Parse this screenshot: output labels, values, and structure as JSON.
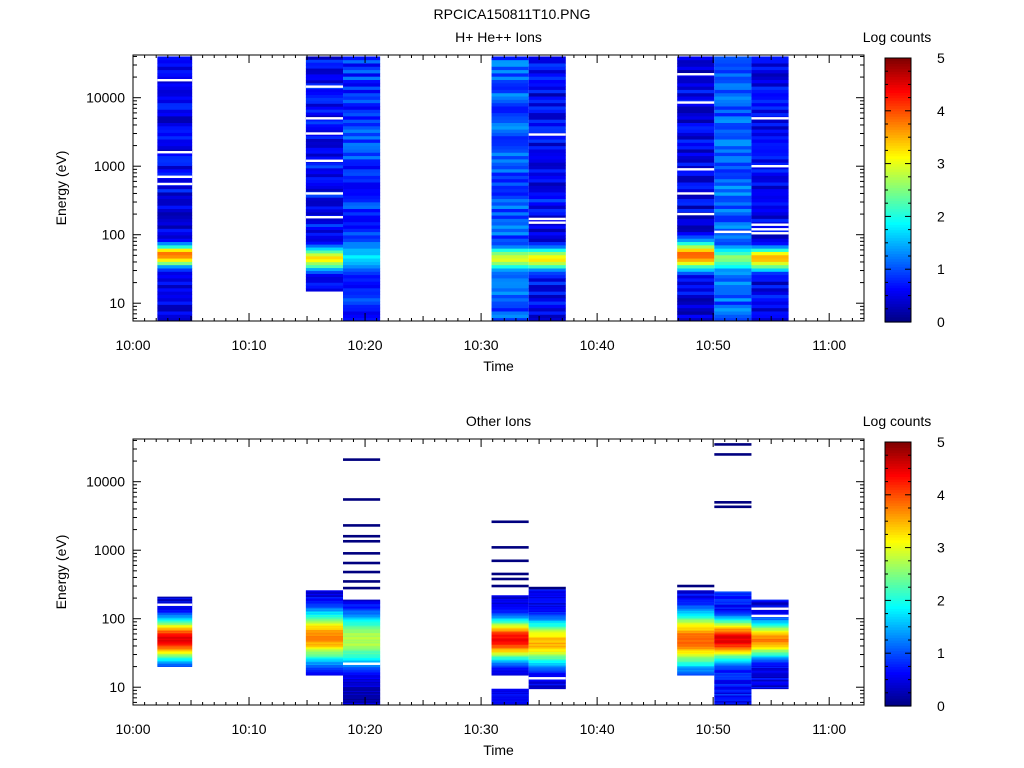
{
  "page_title": "RPCICA150811T10.PNG",
  "colors": {
    "axis": "#000000",
    "background": "#ffffff",
    "colormap": [
      "#00007f",
      "#0000ff",
      "#007fff",
      "#00ffff",
      "#7fff7f",
      "#ffff00",
      "#ff7f00",
      "#ff0000",
      "#7f0000"
    ]
  },
  "chart_data": [
    {
      "type": "heatmap",
      "title": "H+ He++ Ions",
      "xlabel": "Time",
      "ylabel": "Energy (eV)",
      "x_tick_labels": [
        "10:00",
        "10:10",
        "10:20",
        "10:30",
        "10:40",
        "10:50",
        "11:00"
      ],
      "x_tick_minutes": [
        0,
        10,
        20,
        30,
        40,
        50,
        60
      ],
      "xlim_minutes": [
        0,
        63
      ],
      "y_scale": "log",
      "ylim": [
        5.5,
        42000
      ],
      "y_tick_labels": [
        "10",
        "100",
        "1000",
        "10000"
      ],
      "y_tick_values": [
        10,
        100,
        1000,
        10000
      ],
      "colorbar": {
        "label": "Log counts",
        "range": [
          0,
          5
        ],
        "tick_labels": [
          "0",
          "1",
          "2",
          "3",
          "4",
          "5"
        ],
        "tick_values": [
          0,
          1,
          2,
          3,
          4,
          5
        ]
      },
      "columns": [
        {
          "t_start": 2.1,
          "t_end": 5.1,
          "e_min": 5.5,
          "e_max": 40000,
          "base": 0.55,
          "var": 0.35,
          "peak_center": 50,
          "peak_value": 3.8,
          "peak_width": 0.12,
          "gaps": [
            18000,
            1600,
            700,
            550
          ],
          "seed": 11
        },
        {
          "t_start": 14.9,
          "t_end": 18.1,
          "e_min": 15,
          "e_max": 40000,
          "base": 0.65,
          "var": 0.35,
          "peak_center": 45,
          "peak_value": 3.2,
          "peak_width": 0.13,
          "gaps": [
            14500,
            5000,
            3000,
            1200,
            400,
            180
          ],
          "seed": 23
        },
        {
          "t_start": 18.1,
          "t_end": 21.3,
          "e_min": 5.5,
          "e_max": 40000,
          "base": 0.9,
          "var": 0.4,
          "peak_center": 50,
          "peak_value": 1.7,
          "peak_width": 0.2,
          "gaps": [],
          "seed": 37
        },
        {
          "t_start": 30.9,
          "t_end": 34.1,
          "e_min": 5.5,
          "e_max": 40000,
          "base": 1.05,
          "var": 0.35,
          "peak_center": 45,
          "peak_value": 2.9,
          "peak_width": 0.14,
          "gaps": [],
          "seed": 41
        },
        {
          "t_start": 34.1,
          "t_end": 37.3,
          "e_min": 5.5,
          "e_max": 40000,
          "base": 0.6,
          "var": 0.4,
          "peak_center": 45,
          "peak_value": 3.2,
          "peak_width": 0.13,
          "gaps": [
            2900,
            170,
            150
          ],
          "seed": 53
        },
        {
          "t_start": 46.9,
          "t_end": 50.1,
          "e_min": 5.5,
          "e_max": 40000,
          "base": 0.5,
          "var": 0.35,
          "peak_center": 50,
          "peak_value": 3.9,
          "peak_width": 0.16,
          "gaps": [
            22000,
            8500,
            900,
            400,
            200
          ],
          "seed": 67
        },
        {
          "t_start": 50.1,
          "t_end": 53.3,
          "e_min": 5.5,
          "e_max": 40000,
          "base": 1.1,
          "var": 0.35,
          "peak_center": 45,
          "peak_value": 2.5,
          "peak_width": 0.16,
          "gaps": [
            110
          ],
          "seed": 71
        },
        {
          "t_start": 53.3,
          "t_end": 56.5,
          "e_min": 5.5,
          "e_max": 40000,
          "base": 0.55,
          "var": 0.35,
          "peak_center": 45,
          "peak_value": 3.5,
          "peak_width": 0.13,
          "gaps": [
            5000,
            1000,
            140,
            120,
            105
          ],
          "seed": 83
        }
      ]
    },
    {
      "type": "heatmap",
      "title": "Other Ions",
      "xlabel": "Time",
      "ylabel": "Energy (eV)",
      "x_tick_labels": [
        "10:00",
        "10:10",
        "10:20",
        "10:30",
        "10:40",
        "10:50",
        "11:00"
      ],
      "x_tick_minutes": [
        0,
        10,
        20,
        30,
        40,
        50,
        60
      ],
      "xlim_minutes": [
        0,
        63
      ],
      "y_scale": "log",
      "ylim": [
        5.5,
        42000
      ],
      "y_tick_labels": [
        "10",
        "100",
        "1000",
        "10000"
      ],
      "y_tick_values": [
        10,
        100,
        1000,
        10000
      ],
      "colorbar": {
        "label": "Log counts",
        "range": [
          0,
          5
        ],
        "tick_labels": [
          "0",
          "1",
          "2",
          "3",
          "4",
          "5"
        ],
        "tick_values": [
          0,
          1,
          2,
          3,
          4,
          5
        ]
      },
      "columns": [
        {
          "t_start": 2.1,
          "t_end": 5.1,
          "e_min": 20,
          "e_max": 210,
          "base": 0.5,
          "var": 0.3,
          "peak_center": 50,
          "peak_value": 4.5,
          "peak_width": 0.22,
          "gaps": [
            160
          ],
          "seed": 5
        },
        {
          "t_start": 14.9,
          "t_end": 18.1,
          "e_min": 15,
          "e_max": 260,
          "base": 0.5,
          "var": 0.3,
          "peak_center": 55,
          "peak_value": 3.7,
          "peak_width": 0.28,
          "gaps": [],
          "seed": 13
        },
        {
          "t_start": 18.1,
          "t_end": 21.3,
          "e_min": 5.5,
          "e_max": 190,
          "base": 0.3,
          "var": 0.35,
          "peak_center": 50,
          "peak_value": 2.8,
          "peak_width": 0.3,
          "gaps": [
            22
          ],
          "seed": 19
        },
        {
          "t_start": 30.9,
          "t_end": 34.1,
          "e_min": 15,
          "e_max": 220,
          "base": 0.4,
          "var": 0.3,
          "peak_center": 50,
          "peak_value": 4.4,
          "peak_width": 0.22,
          "gaps": [],
          "seed": 29
        },
        {
          "t_start": 30.9,
          "t_end": 34.1,
          "e_min": 5.5,
          "e_max": 9.5,
          "base": 0.6,
          "var": 0.2,
          "peak_center": 50,
          "peak_value": 0.6,
          "peak_width": 0.1,
          "gaps": [],
          "seed": 31
        },
        {
          "t_start": 34.1,
          "t_end": 37.3,
          "e_min": 9.5,
          "e_max": 270,
          "base": 0.5,
          "var": 0.3,
          "peak_center": 45,
          "peak_value": 3.5,
          "peak_width": 0.25,
          "gaps": [
            13.5
          ],
          "seed": 43
        },
        {
          "t_start": 46.9,
          "t_end": 50.1,
          "e_min": 15,
          "e_max": 260,
          "base": 0.5,
          "var": 0.3,
          "peak_center": 50,
          "peak_value": 3.9,
          "peak_width": 0.3,
          "gaps": [],
          "seed": 59
        },
        {
          "t_start": 50.1,
          "t_end": 53.3,
          "e_min": 5.5,
          "e_max": 250,
          "base": 0.7,
          "var": 0.3,
          "peak_center": 50,
          "peak_value": 4.5,
          "peak_width": 0.22,
          "gaps": [],
          "seed": 61
        },
        {
          "t_start": 53.3,
          "t_end": 56.5,
          "e_min": 9.5,
          "e_max": 190,
          "base": 0.5,
          "var": 0.3,
          "peak_center": 50,
          "peak_value": 3.7,
          "peak_width": 0.2,
          "gaps": [
            140,
            110
          ],
          "seed": 79
        }
      ],
      "lines": [
        {
          "t_start": 18.1,
          "t_end": 21.3,
          "energies": [
            21000,
            5500,
            2300,
            1600,
            1350,
            900,
            650,
            480,
            350,
            280
          ]
        },
        {
          "t_start": 30.9,
          "t_end": 34.1,
          "energies": [
            2600,
            1100,
            700,
            450,
            380,
            300
          ]
        },
        {
          "t_start": 34.1,
          "t_end": 37.3,
          "energies": [
            280
          ]
        },
        {
          "t_start": 46.9,
          "t_end": 50.1,
          "energies": [
            300
          ]
        },
        {
          "t_start": 50.1,
          "t_end": 53.3,
          "energies": [
            35000,
            25000,
            5000,
            4300
          ]
        }
      ]
    }
  ]
}
